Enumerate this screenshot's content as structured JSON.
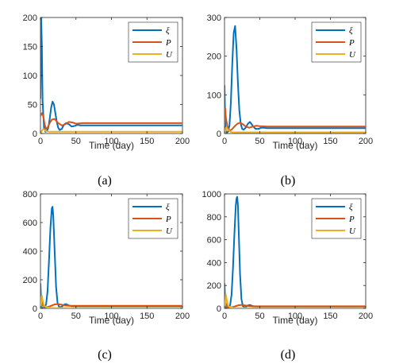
{
  "chart_data": [
    {
      "type": "line",
      "caption": "(a)",
      "xlabel": "Time (day)",
      "ylabel": "",
      "xlim": [
        0,
        200
      ],
      "ylim": [
        0,
        200
      ],
      "xticks": [
        0,
        50,
        100,
        150,
        200
      ],
      "yticks": [
        0,
        50,
        100,
        150,
        200
      ],
      "legend_position": "top-right",
      "series": [
        {
          "name": "ξ",
          "color": "#0072BD",
          "x": [
            0,
            1,
            2,
            3,
            5,
            7,
            9,
            11,
            13,
            15,
            17,
            19,
            21,
            23,
            25,
            27,
            30,
            33,
            36,
            40,
            44,
            48,
            52,
            56,
            60,
            65,
            70,
            75,
            80,
            90,
            100,
            120,
            150,
            200
          ],
          "y": [
            60,
            200,
            150,
            55,
            10,
            3,
            4,
            10,
            25,
            44,
            55,
            50,
            35,
            20,
            10,
            6,
            8,
            15,
            18,
            16,
            12,
            13,
            15,
            14,
            14,
            14,
            14,
            14,
            14,
            14,
            14,
            14,
            14,
            14
          ]
        },
        {
          "name": "P",
          "color": "#D95319",
          "x": [
            0,
            2,
            4,
            6,
            8,
            10,
            13,
            16,
            20,
            25,
            30,
            35,
            40,
            45,
            50,
            60,
            70,
            80,
            100,
            150,
            200
          ],
          "y": [
            30,
            35,
            30,
            15,
            8,
            10,
            18,
            24,
            25,
            18,
            14,
            16,
            20,
            19,
            17,
            18,
            18,
            18,
            18,
            18,
            18
          ]
        },
        {
          "name": "U",
          "color": "#EDB120",
          "x": [
            0,
            1,
            2,
            4,
            6,
            8,
            12,
            16,
            20,
            30,
            40,
            50,
            100,
            200
          ],
          "y": [
            0,
            2,
            5,
            8,
            6,
            4,
            3,
            3,
            3,
            3,
            3,
            3,
            3,
            3
          ]
        }
      ]
    },
    {
      "type": "line",
      "caption": "(b)",
      "xlabel": "Time (day)",
      "ylabel": "",
      "xlim": [
        0,
        200
      ],
      "ylim": [
        0,
        300
      ],
      "xticks": [
        0,
        50,
        100,
        150,
        200
      ],
      "yticks": [
        0,
        100,
        200,
        300
      ],
      "legend_position": "top-right",
      "series": [
        {
          "name": "ξ",
          "color": "#0072BD",
          "x": [
            0,
            1,
            2,
            3,
            4,
            5,
            7,
            9,
            11,
            13,
            15,
            17,
            19,
            21,
            23,
            25,
            27,
            30,
            33,
            36,
            40,
            44,
            48,
            52,
            56,
            60,
            70,
            80,
            100,
            150,
            200
          ],
          "y": [
            125,
            30,
            5,
            3,
            3,
            5,
            20,
            80,
            180,
            260,
            278,
            220,
            130,
            60,
            25,
            12,
            10,
            15,
            25,
            30,
            20,
            12,
            12,
            15,
            15,
            14,
            14,
            14,
            14,
            14,
            14
          ]
        },
        {
          "name": "P",
          "color": "#D95319",
          "x": [
            0,
            1,
            2,
            4,
            6,
            8,
            10,
            14,
            18,
            22,
            26,
            30,
            35,
            40,
            45,
            50,
            60,
            70,
            80,
            100,
            150,
            200
          ],
          "y": [
            20,
            65,
            40,
            20,
            10,
            8,
            10,
            18,
            25,
            28,
            24,
            18,
            15,
            18,
            20,
            19,
            18,
            18,
            18,
            18,
            18,
            18
          ]
        },
        {
          "name": "U",
          "color": "#EDB120",
          "x": [
            0,
            1,
            2,
            4,
            6,
            8,
            12,
            16,
            20,
            30,
            40,
            50,
            100,
            200
          ],
          "y": [
            0,
            5,
            15,
            12,
            8,
            5,
            3,
            3,
            3,
            3,
            3,
            3,
            3,
            3
          ]
        }
      ]
    },
    {
      "type": "line",
      "caption": "(c)",
      "xlabel": "Time (day)",
      "ylabel": "",
      "xlim": [
        0,
        200
      ],
      "ylim": [
        0,
        800
      ],
      "xticks": [
        0,
        50,
        100,
        150,
        200
      ],
      "yticks": [
        0,
        200,
        400,
        600,
        800
      ],
      "legend_position": "top-right",
      "series": [
        {
          "name": "ξ",
          "color": "#0072BD",
          "x": [
            0,
            1,
            2,
            3,
            4,
            6,
            8,
            10,
            12,
            14,
            16,
            17,
            18,
            20,
            22,
            24,
            26,
            28,
            30,
            33,
            36,
            40,
            45,
            50,
            60,
            80,
            100,
            150,
            200
          ],
          "y": [
            175,
            40,
            5,
            2,
            2,
            5,
            30,
            120,
            330,
            560,
            700,
            710,
            650,
            400,
            150,
            40,
            12,
            8,
            12,
            25,
            30,
            20,
            15,
            15,
            15,
            15,
            15,
            15,
            15
          ]
        },
        {
          "name": "P",
          "color": "#D95319",
          "x": [
            0,
            1,
            2,
            4,
            6,
            8,
            12,
            16,
            20,
            25,
            30,
            35,
            40,
            50,
            60,
            80,
            100,
            150,
            200
          ],
          "y": [
            20,
            80,
            50,
            20,
            10,
            8,
            12,
            20,
            28,
            30,
            25,
            20,
            18,
            18,
            18,
            18,
            18,
            18,
            18
          ]
        },
        {
          "name": "U",
          "color": "#EDB120",
          "x": [
            0,
            1,
            2,
            3,
            5,
            8,
            12,
            16,
            20,
            30,
            50,
            100,
            200
          ],
          "y": [
            0,
            30,
            90,
            60,
            20,
            8,
            4,
            3,
            3,
            3,
            3,
            3,
            3
          ]
        }
      ]
    },
    {
      "type": "line",
      "caption": "(d)",
      "xlabel": "Time (day)",
      "ylabel": "",
      "xlim": [
        0,
        200
      ],
      "ylim": [
        0,
        1000
      ],
      "xticks": [
        0,
        50,
        100,
        150,
        200
      ],
      "yticks": [
        0,
        200,
        400,
        600,
        800,
        1000
      ],
      "legend_position": "top-right",
      "series": [
        {
          "name": "ξ",
          "color": "#0072BD",
          "x": [
            0,
            1,
            2,
            3,
            4,
            6,
            8,
            10,
            12,
            14,
            16,
            17,
            18,
            19,
            20,
            22,
            24,
            26,
            28,
            30,
            33,
            36,
            40,
            45,
            50,
            60,
            80,
            100,
            150,
            200
          ],
          "y": [
            220,
            40,
            5,
            2,
            2,
            5,
            30,
            120,
            350,
            650,
            900,
            960,
            975,
            900,
            700,
            300,
            80,
            20,
            10,
            12,
            25,
            30,
            20,
            15,
            15,
            15,
            15,
            15,
            15,
            15
          ]
        },
        {
          "name": "P",
          "color": "#D95319",
          "x": [
            0,
            1,
            2,
            4,
            6,
            8,
            12,
            16,
            20,
            25,
            30,
            35,
            40,
            50,
            60,
            80,
            100,
            150,
            200
          ],
          "y": [
            20,
            60,
            40,
            15,
            10,
            8,
            12,
            20,
            28,
            30,
            25,
            20,
            18,
            18,
            18,
            18,
            18,
            18,
            18
          ]
        },
        {
          "name": "U",
          "color": "#EDB120",
          "x": [
            0,
            1,
            2,
            3,
            5,
            8,
            12,
            16,
            20,
            30,
            50,
            100,
            200
          ],
          "y": [
            0,
            40,
            120,
            80,
            25,
            8,
            4,
            3,
            3,
            3,
            3,
            3,
            3
          ]
        }
      ]
    }
  ]
}
